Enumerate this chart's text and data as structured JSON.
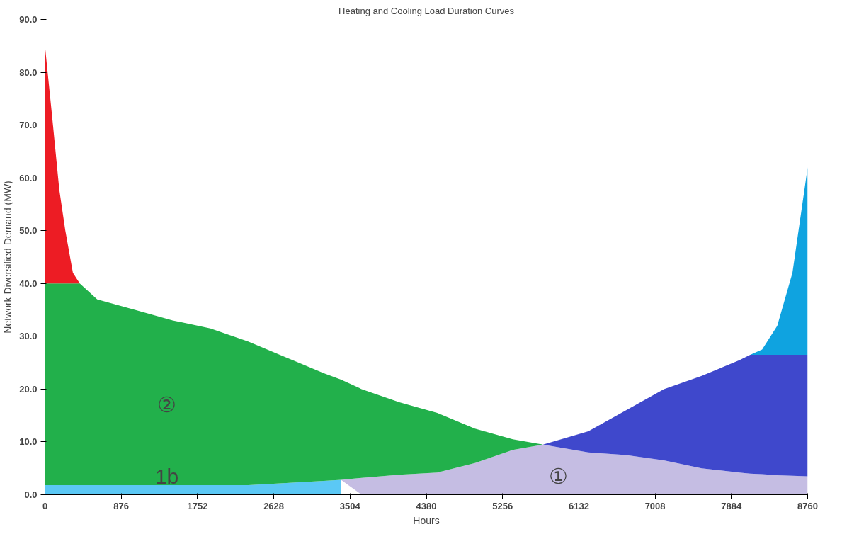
{
  "chart_data": {
    "type": "area",
    "stacked": true,
    "title": "Heating and Cooling Load Duration Curves",
    "xlabel": "Hours",
    "ylabel": "Network Diversified Demand (MW)",
    "x": [
      0,
      80,
      165,
      234,
      321,
      400,
      600,
      1033,
      1467,
      1900,
      2335,
      2770,
      3203,
      3400,
      3637,
      4071,
      4505,
      4939,
      5373,
      5720,
      6240,
      6675,
      7109,
      7543,
      7977,
      8100,
      8237,
      8411,
      8585,
      8760
    ],
    "series": [
      {
        "color": "#5bc8f5",
        "values": [
          1.8,
          1.8,
          1.8,
          1.8,
          1.8,
          1.8,
          1.8,
          1.8,
          1.8,
          1.8,
          1.8,
          2.2,
          2.6,
          2.8,
          null,
          null,
          null,
          null,
          null,
          null,
          null,
          null,
          null,
          null,
          null,
          null,
          null,
          null,
          null,
          null
        ]
      },
      {
        "color": "#c5bde3",
        "values": [
          null,
          null,
          null,
          null,
          null,
          null,
          null,
          null,
          null,
          null,
          null,
          null,
          null,
          0,
          3.2,
          3.8,
          4.2,
          6,
          8.5,
          9.5,
          8,
          7.5,
          6.5,
          5,
          4.2,
          4.0,
          3.9,
          3.7,
          3.6,
          3.5
        ]
      },
      {
        "color": "#22b04b",
        "values": [
          38.2,
          38.2,
          38.2,
          38.2,
          38.2,
          38.2,
          35.2,
          33.2,
          31.2,
          29.7,
          27.2,
          23.8,
          20.4,
          19,
          16.8,
          13.7,
          11.3,
          6.5,
          2,
          0,
          null,
          null,
          null,
          null,
          null,
          null,
          null,
          null,
          null,
          null
        ]
      },
      {
        "color": "#3f48cc",
        "values": [
          null,
          null,
          null,
          null,
          null,
          null,
          null,
          null,
          null,
          null,
          null,
          null,
          null,
          null,
          null,
          null,
          null,
          null,
          null,
          0,
          4,
          8.5,
          13.5,
          17.5,
          21.3,
          22.5,
          22.6,
          22.8,
          22.9,
          23.0
        ]
      },
      {
        "color": "#ed1c24",
        "values": [
          45,
          32,
          17.7,
          10,
          2,
          0,
          null,
          null,
          null,
          null,
          null,
          null,
          null,
          null,
          null,
          null,
          null,
          null,
          null,
          null,
          null,
          null,
          null,
          null,
          null,
          null,
          null,
          null,
          null,
          null
        ]
      },
      {
        "color": "#0fa3e0",
        "values": [
          null,
          null,
          null,
          null,
          null,
          null,
          null,
          null,
          null,
          null,
          null,
          null,
          null,
          null,
          null,
          null,
          null,
          null,
          null,
          null,
          null,
          null,
          null,
          null,
          null,
          0,
          1,
          5.5,
          15.5,
          35.5
        ]
      }
    ],
    "xlim": [
      0,
      8760
    ],
    "xticks": [
      0,
      876,
      1752,
      2628,
      3504,
      4380,
      5256,
      6132,
      7008,
      7884,
      8760
    ],
    "ylim": [
      0,
      90
    ],
    "yticks": [
      {
        "value": 0,
        "label": "0.0"
      },
      {
        "value": 10,
        "label": "10.0"
      },
      {
        "value": 20,
        "label": "20.0"
      },
      {
        "value": 30,
        "label": "30.0"
      },
      {
        "value": 40,
        "label": "40.0"
      },
      {
        "value": 50,
        "label": "50.0"
      },
      {
        "value": 60,
        "label": "60.0"
      },
      {
        "value": 70,
        "label": "70.0"
      },
      {
        "value": 80,
        "label": "80.0"
      },
      {
        "value": 90,
        "label": "90.0"
      }
    ],
    "annotations": [
      "②",
      "1b",
      "①"
    ],
    "grid": false
  }
}
